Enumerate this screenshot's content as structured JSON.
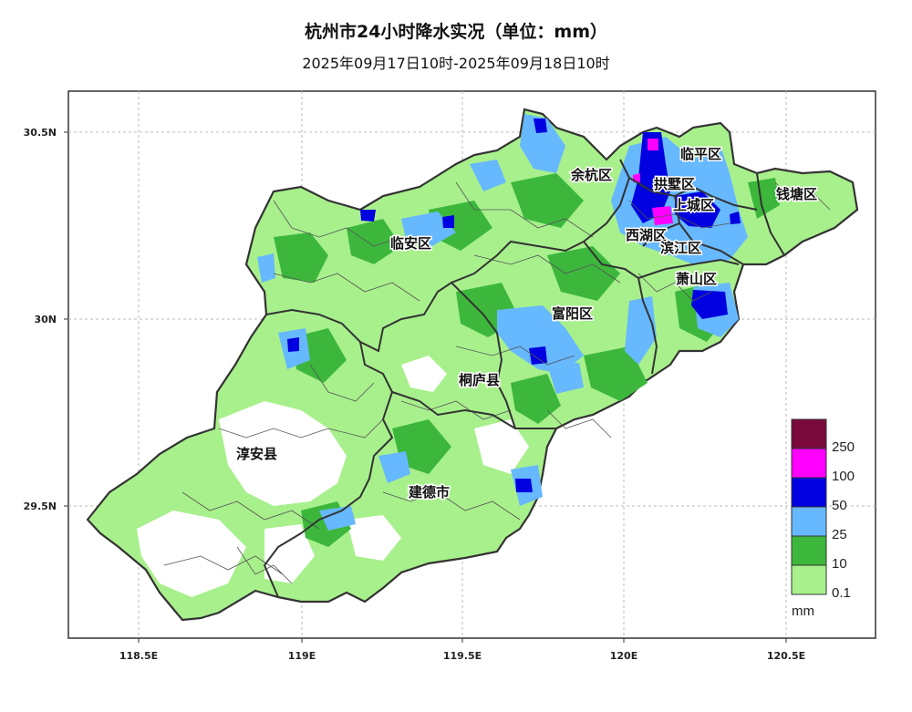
{
  "title": "杭州市24小时降水实况（单位：mm）",
  "subtitle": "2025年09月17日10时-2025年09月18日10时",
  "axes": {
    "y_ticks": [
      "30.5N",
      "30N",
      "29.5N"
    ],
    "x_ticks": [
      "118.5E",
      "119E",
      "119.5E",
      "120E",
      "120.5E"
    ]
  },
  "districts": [
    {
      "name": "临平区"
    },
    {
      "name": "余杭区"
    },
    {
      "name": "拱墅区"
    },
    {
      "name": "钱塘区"
    },
    {
      "name": "上城区"
    },
    {
      "name": "临安区"
    },
    {
      "name": "西湖区"
    },
    {
      "name": "滨江区"
    },
    {
      "name": "萧山区"
    },
    {
      "name": "富阳区"
    },
    {
      "name": "桐庐县"
    },
    {
      "name": "淳安县"
    },
    {
      "name": "建德市"
    }
  ],
  "legend": {
    "unit": "mm",
    "levels": [
      "250",
      "100",
      "50",
      "25",
      "10",
      "0.1"
    ],
    "colors": [
      "#7a0a3c",
      "#ff00ff",
      "#0000e0",
      "#66b8ff",
      "#3cb73c",
      "#a8f08c"
    ]
  }
}
